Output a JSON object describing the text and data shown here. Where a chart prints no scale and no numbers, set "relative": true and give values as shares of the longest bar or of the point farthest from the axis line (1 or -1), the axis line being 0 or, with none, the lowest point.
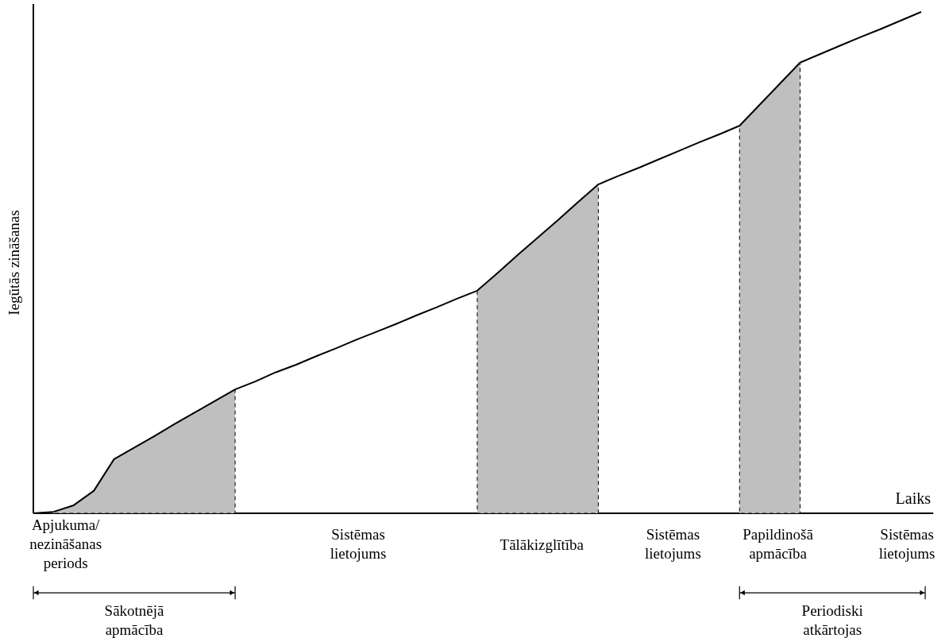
{
  "chart_data": {
    "type": "line",
    "relative": true,
    "xlabel": "Laiks",
    "ylabel": "Iegūtās zināšanas",
    "categories": [
      null,
      null,
      null,
      null,
      null,
      null,
      null,
      null,
      null,
      null,
      null,
      null,
      null,
      null,
      null,
      null,
      null,
      null,
      null,
      null,
      null,
      null,
      null,
      null,
      null,
      null,
      null,
      null,
      null,
      null,
      null,
      null,
      null,
      null,
      null,
      null,
      null,
      null,
      null,
      null,
      null,
      null,
      null,
      null,
      null
    ],
    "series": [
      {
        "type": "area",
        "color": "#bfbfbf",
        "values": [
          0,
          0.003,
          0.016,
          0.045,
          0.108,
          0.131,
          0.154,
          0.178,
          0.201,
          0.224,
          0.247,
          null,
          null,
          null,
          null,
          null,
          null,
          null,
          null,
          null,
          null,
          null,
          0.444,
          0.479,
          0.515,
          0.55,
          0.585,
          0.621,
          0.656,
          null,
          null,
          null,
          null,
          null,
          null,
          0.773,
          0.815,
          0.857,
          0.899,
          null,
          null,
          null,
          null,
          null,
          null
        ]
      },
      {
        "color": "#000000",
        "values": [
          0,
          0.003,
          0.016,
          0.045,
          0.108,
          0.131,
          0.154,
          0.178,
          0.201,
          0.224,
          0.247,
          0.263,
          0.281,
          0.296,
          0.313,
          0.329,
          0.346,
          0.362,
          0.378,
          0.395,
          0.411,
          0.428,
          0.444,
          0.479,
          0.515,
          0.55,
          0.585,
          0.621,
          0.656,
          0.673,
          0.689,
          0.706,
          0.723,
          0.74,
          0.756,
          0.773,
          0.815,
          0.857,
          0.899,
          0.916,
          0.933,
          0.95,
          0.966,
          0.983,
          1.0
        ]
      }
    ],
    "annotations": [
      "Apjukuma/ nezināšanas periods",
      "Sistēmas lietojums",
      "Tālākizglītība",
      "Sistēmas lietojums",
      "Papildinošā apmācība",
      "Sistēmas lietojums",
      "Sākotnējā apmācība",
      "Periodiski atkārtojas"
    ]
  }
}
